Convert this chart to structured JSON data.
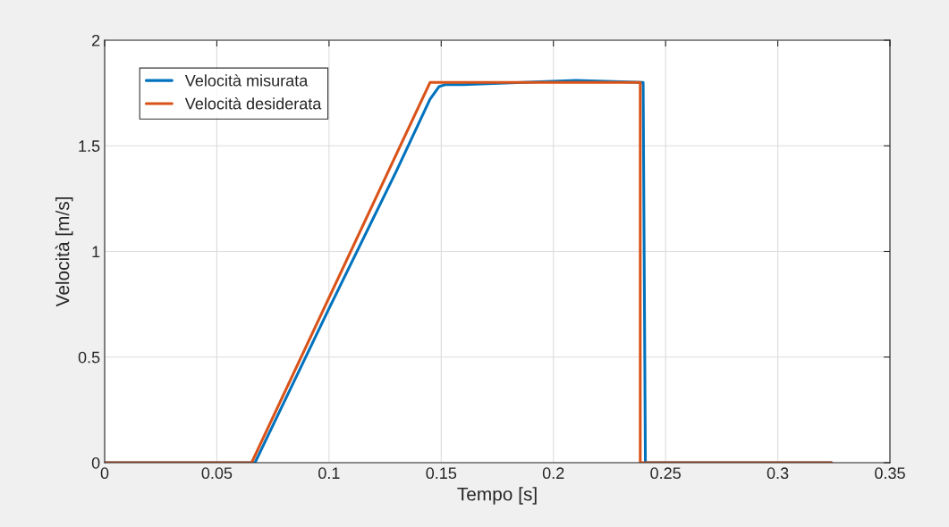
{
  "chart_data": {
    "type": "line",
    "xlabel": "Tempo [s]",
    "ylabel": "Velocità [m/s]",
    "xlim": [
      0,
      0.35
    ],
    "xticks": [
      0,
      0.05,
      0.1,
      0.15,
      0.2,
      0.25,
      0.3,
      0.35
    ],
    "ylim": [
      0,
      2
    ],
    "yticks": [
      0,
      0.5,
      1,
      1.5,
      2
    ],
    "grid": true,
    "legend": "top left",
    "series": [
      {
        "name": "Velocità misurata",
        "color": "#0072bd",
        "x": [
          0,
          0.067,
          0.1,
          0.13,
          0.145,
          0.149,
          0.152,
          0.16,
          0.21,
          0.24,
          0.241,
          0.324
        ],
        "values": [
          0,
          0,
          0.73,
          1.38,
          1.72,
          1.78,
          1.79,
          1.79,
          1.81,
          1.8,
          0,
          0
        ]
      },
      {
        "name": "Velocità desiderata",
        "color": "#d95319",
        "x": [
          0,
          0.0655,
          0.145,
          0.2387,
          0.2387,
          0.324
        ],
        "values": [
          0,
          0,
          1.8,
          1.8,
          0,
          0
        ]
      }
    ]
  }
}
